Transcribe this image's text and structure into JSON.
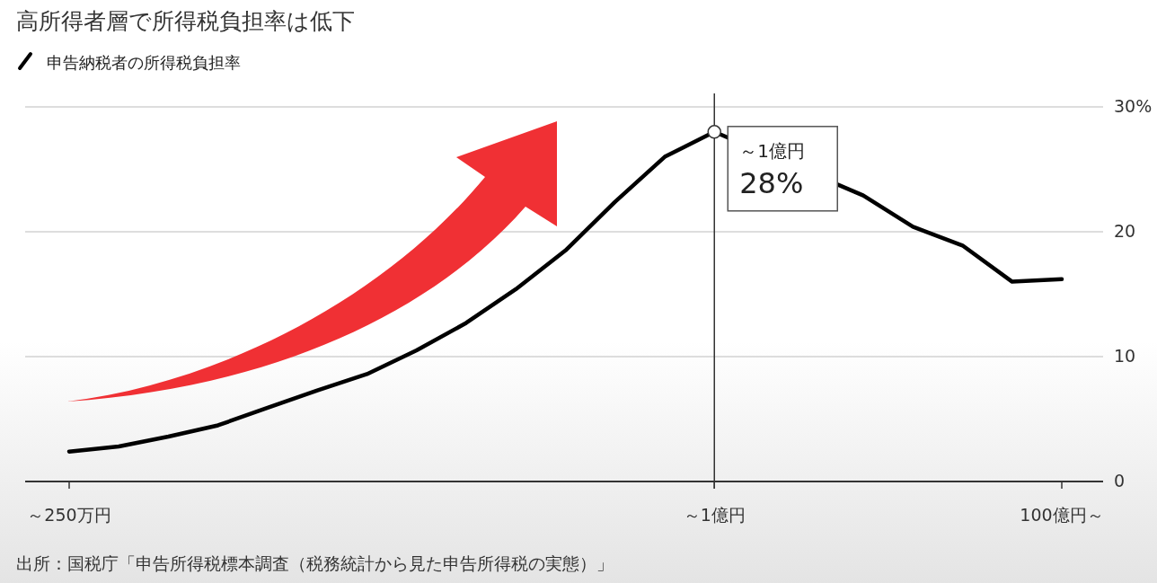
{
  "chart_data": {
    "type": "line",
    "title": "高所得者層で所得税負担率は低下",
    "categories": [
      "～250万円",
      null,
      null,
      null,
      null,
      null,
      null,
      null,
      null,
      null,
      null,
      null,
      null,
      "～1億円",
      null,
      null,
      null,
      null,
      null,
      null,
      "100億円～"
    ],
    "series": [
      {
        "name": "申告納税者の所得税負担率",
        "color": "#000000",
        "values": [
          2.4,
          2.8,
          3.6,
          4.5,
          5.9,
          7.3,
          8.6,
          10.5,
          12.7,
          15.4,
          18.5,
          22.4,
          26.0,
          28,
          null,
          null,
          22.9,
          20.4,
          18.9,
          16.0,
          16.2
        ]
      }
    ],
    "ylim": [
      0,
      30
    ],
    "yticks": [
      0,
      10,
      20,
      {
        "value": 30,
        "label": "30%"
      }
    ],
    "grid": "y",
    "legend": "top left",
    "ref_lines": [
      {
        "axis": "x",
        "value": "～1億円",
        "color": "#333333"
      }
    ],
    "annotations": [
      {
        "text": "～1億円",
        "x": "～1億円",
        "y": 28
      },
      {
        "text": "28%",
        "x": "～1億円",
        "y": 28
      },
      "出所：国税庁「申告所得税標本調査（税務統計から見た申告所得税の実態）」"
    ]
  }
}
